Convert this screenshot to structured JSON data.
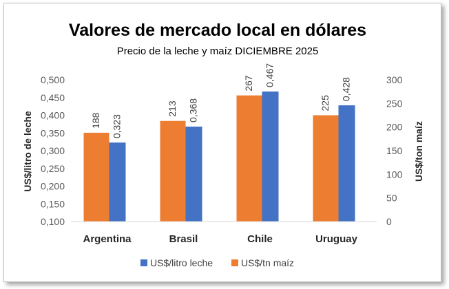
{
  "chart_data": {
    "type": "bar",
    "title": "Valores de mercado local en dólares",
    "subtitle": "Precio de la leche y maíz DICIEMBRE 2025",
    "categories": [
      "Argentina",
      "Brasil",
      "Chile",
      "Uruguay"
    ],
    "series": [
      {
        "name": "US$/tn maíz",
        "axis": "right",
        "color": "#ed7d31",
        "values": [
          188,
          213,
          267,
          225
        ],
        "labels": [
          "188",
          "213",
          "267",
          "225"
        ]
      },
      {
        "name": "US$/litro leche",
        "axis": "left",
        "color": "#4472c4",
        "values": [
          0.323,
          0.368,
          0.467,
          0.428
        ],
        "labels": [
          "0,323",
          "0,368",
          "0,467",
          "0,428"
        ]
      }
    ],
    "ylabel_left": "US$/litro de leche",
    "ylabel_right": "US$/ton maíz",
    "ylim_left": [
      0.1,
      0.5
    ],
    "ylim_right": [
      0,
      300
    ],
    "yticks_left": [
      "0,100",
      "0,150",
      "0,200",
      "0,250",
      "0,300",
      "0,350",
      "0,400",
      "0,450",
      "0,500"
    ],
    "yticks_right": [
      "0",
      "50",
      "100",
      "150",
      "200",
      "250",
      "300"
    ],
    "legend": [
      {
        "name": "US$/litro leche",
        "color": "#4472c4"
      },
      {
        "name": "US$/tn maíz",
        "color": "#ed7d31"
      }
    ],
    "legend_position": "bottom",
    "grid": false
  }
}
